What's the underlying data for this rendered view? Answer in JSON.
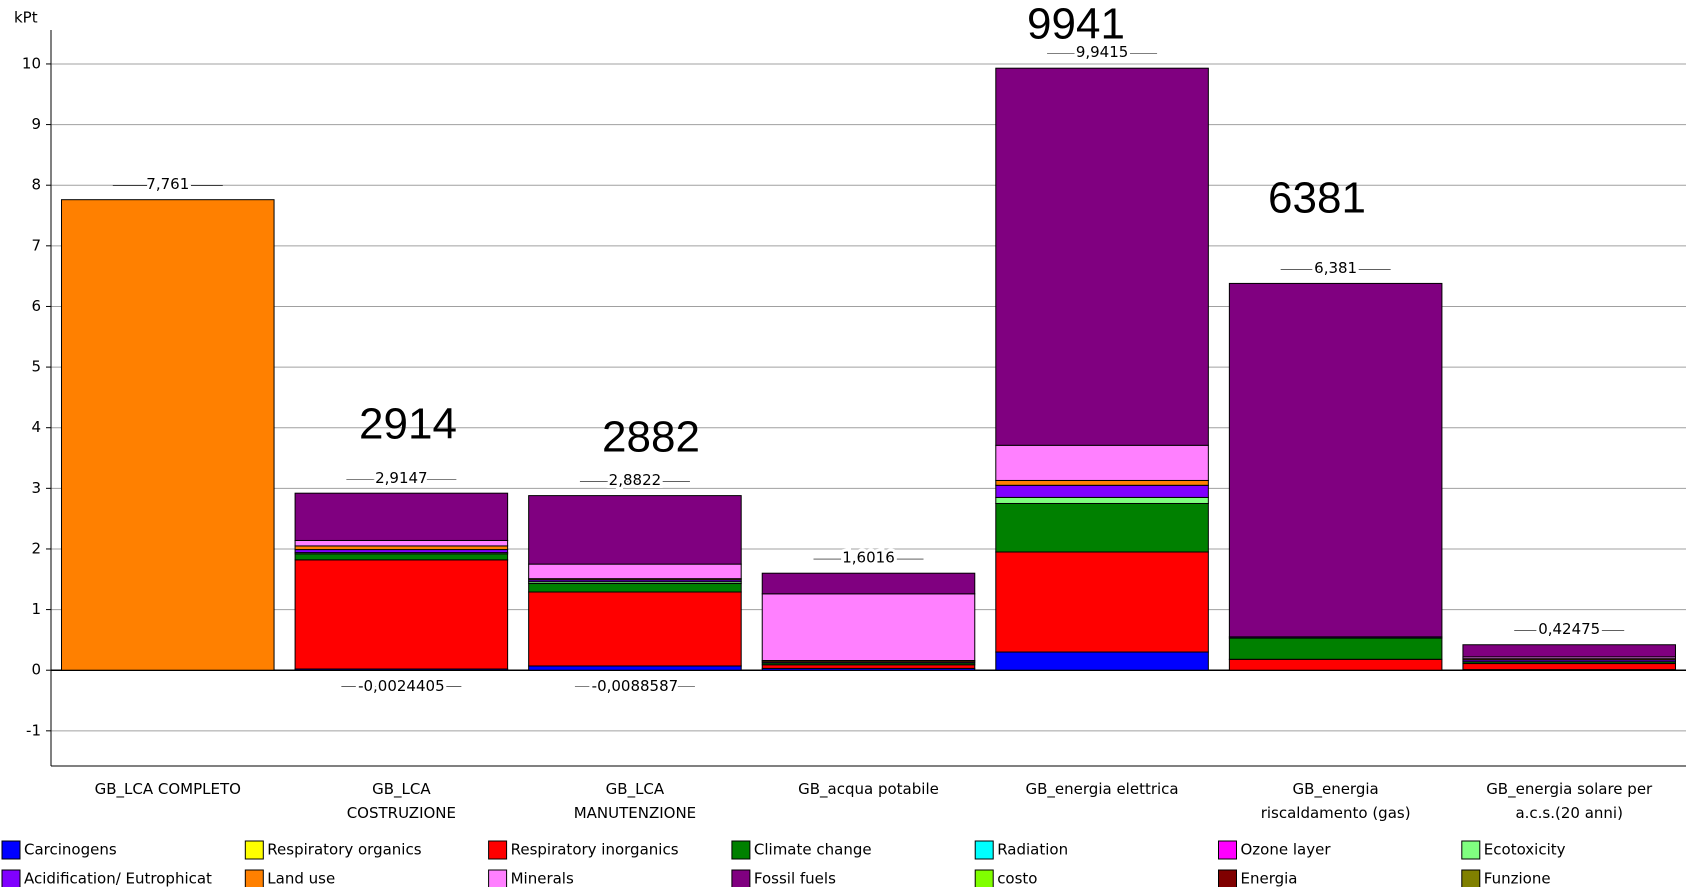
{
  "chart_data": {
    "type": "stacked-bar",
    "y_axis_label": "kPt",
    "categories": [
      "GB_LCA COMPLETO",
      "GB_LCA\nCOSTRUZIONE",
      "GB_LCA\nMANUTENZIONE",
      "GB_acqua potabile",
      "GB_energia elettrica",
      "GB_energia\nriscaldamento (gas)",
      "GB_energia solare per\na.c.s.(20 anni)"
    ],
    "ylim": [
      -1.58,
      10.56
    ],
    "yticks": [
      -1,
      0,
      1,
      2,
      3,
      4,
      5,
      6,
      7,
      8,
      9,
      10
    ],
    "grid": true,
    "series": [
      {
        "name": "Carcinogens",
        "color": "#0000ff",
        "values": [
          0,
          0.02,
          0.07,
          0.03,
          0.3,
          0,
          0.01
        ]
      },
      {
        "name": "Respiratory organics",
        "color": "#ffff00",
        "values": [
          0,
          0,
          0,
          0,
          0,
          0,
          0
        ]
      },
      {
        "name": "Respiratory inorganics",
        "color": "#ff0000",
        "values": [
          0,
          1.8,
          1.22,
          0.06,
          1.65,
          0.18,
          0.1
        ]
      },
      {
        "name": "Climate change",
        "color": "#008000",
        "values": [
          0,
          0.1,
          0.14,
          0.03,
          0.8,
          0.35,
          0.03
        ]
      },
      {
        "name": "Radiation",
        "color": "#00ffff",
        "values": [
          0,
          0,
          0,
          0,
          0,
          0,
          0
        ]
      },
      {
        "name": "Ozone layer",
        "color": "#ff00ff",
        "values": [
          0,
          0,
          0,
          0,
          0,
          0,
          0
        ]
      },
      {
        "name": "Ecotoxicity",
        "color": "#80ff80",
        "values": [
          0,
          0.02,
          0.03,
          0,
          0.1,
          0,
          0
        ]
      },
      {
        "name": "Acidification/ Eutrophicat",
        "color": "#8000ff",
        "values": [
          0,
          0.05,
          0.03,
          0.02,
          0.2,
          0.02,
          0.03
        ]
      },
      {
        "name": "Land use",
        "color": "#ff8000",
        "values": [
          7.761,
          0.06,
          0.02,
          0.02,
          0.08,
          0,
          0.02
        ]
      },
      {
        "name": "Minerals",
        "color": "#ff80ff",
        "values": [
          0,
          0.09,
          0.24,
          1.1,
          0.58,
          0,
          0.03
        ]
      },
      {
        "name": "Fossil fuels",
        "color": "#800080",
        "values": [
          0,
          0.78,
          1.13,
          0.34,
          6.22,
          5.83,
          0.2
        ]
      },
      {
        "name": "costo",
        "color": "#80ff00",
        "values": [
          0,
          0,
          0,
          0,
          0,
          0,
          0
        ]
      },
      {
        "name": "Energia",
        "color": "#800000",
        "values": [
          0,
          0,
          0,
          0,
          0,
          0,
          0
        ]
      },
      {
        "name": "Funzione",
        "color": "#808000",
        "values": [
          0,
          0,
          0,
          0,
          0,
          0,
          0
        ]
      }
    ],
    "totals": {
      "values": [
        7.761,
        2.9147,
        2.8822,
        1.6016,
        9.9415,
        6.381,
        0.42475
      ],
      "value_labels": [
        "7,761",
        "2,9147",
        "2,8822",
        "1,6016",
        "9,9415",
        "6,381",
        "0,42475"
      ]
    },
    "minimums": {
      "values": [
        null,
        -0.0024405,
        -0.0088587,
        null,
        null,
        null,
        null
      ],
      "value_labels": [
        null,
        "-0,0024405",
        "-0,0088587",
        null,
        null,
        null,
        null
      ]
    },
    "annotations": [
      "2914",
      "2882",
      "9941",
      "6381"
    ]
  }
}
